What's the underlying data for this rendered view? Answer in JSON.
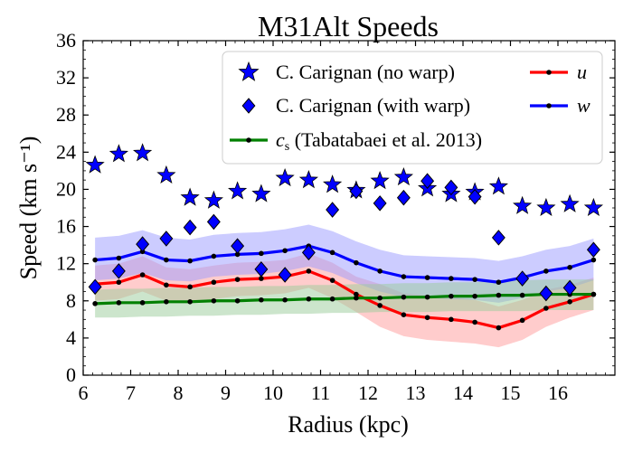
{
  "chart_data": {
    "type": "line",
    "title": "M31Alt Speeds",
    "xlabel": "Radius (kpc)",
    "ylabel": "Speed (km s⁻¹)",
    "xlim": [
      6.0,
      17.2
    ],
    "ylim": [
      0,
      36
    ],
    "xticks": [
      "6",
      "7",
      "8",
      "9",
      "10",
      "11",
      "12",
      "13",
      "14",
      "15",
      "16"
    ],
    "yticks": [
      "0",
      "4",
      "8",
      "12",
      "16",
      "20",
      "24",
      "28",
      "32",
      "36"
    ],
    "grid": false,
    "legend_placement": "top-right",
    "colors": {
      "u": "#ff0000",
      "w": "#0000ff",
      "cs": "#008000",
      "stars": "#0000ff",
      "diamonds": "#0000ff",
      "u_band": "#ff9999",
      "w_band": "#9999ff",
      "cs_band": "#99cc99"
    },
    "x": [
      6.25,
      6.75,
      7.25,
      7.75,
      8.25,
      8.75,
      9.25,
      9.75,
      10.25,
      10.75,
      11.25,
      11.75,
      12.25,
      12.75,
      13.25,
      13.75,
      14.25,
      14.75,
      15.25,
      15.75,
      16.25,
      16.75
    ],
    "series": [
      {
        "name": "u",
        "label": "u",
        "values": [
          9.8,
          10.0,
          10.8,
          9.7,
          9.5,
          10.0,
          10.3,
          10.4,
          10.6,
          11.2,
          10.2,
          8.7,
          7.5,
          6.5,
          6.2,
          6.0,
          5.7,
          5.1,
          5.9,
          7.2,
          7.9,
          8.7
        ],
        "band_lower": [
          8.0,
          8.2,
          9.0,
          8.0,
          7.8,
          8.2,
          8.5,
          8.6,
          8.8,
          9.4,
          8.3,
          6.8,
          5.2,
          4.2,
          3.8,
          3.6,
          3.4,
          3.0,
          3.8,
          5.2,
          6.2,
          7.0
        ],
        "band_upper": [
          11.8,
          12.0,
          12.8,
          11.6,
          11.4,
          11.8,
          12.1,
          12.2,
          12.4,
          13.1,
          12.1,
          10.6,
          9.8,
          8.8,
          8.6,
          8.4,
          8.1,
          7.4,
          8.1,
          9.2,
          9.7,
          10.5
        ]
      },
      {
        "name": "w",
        "label": "w",
        "values": [
          12.4,
          12.6,
          13.3,
          12.4,
          12.3,
          12.8,
          13.0,
          13.1,
          13.4,
          13.9,
          13.2,
          12.1,
          11.2,
          10.6,
          10.5,
          10.4,
          10.3,
          10.0,
          10.5,
          11.2,
          11.6,
          12.4
        ],
        "band_lower": [
          10.2,
          10.4,
          11.0,
          10.2,
          10.1,
          10.6,
          10.8,
          10.9,
          11.2,
          11.7,
          11.0,
          9.9,
          9.0,
          8.4,
          8.3,
          8.2,
          8.1,
          7.8,
          8.3,
          9.0,
          9.4,
          10.2
        ],
        "band_upper": [
          14.8,
          15.0,
          15.6,
          14.8,
          14.6,
          15.1,
          15.3,
          15.4,
          15.7,
          16.2,
          15.5,
          14.4,
          13.5,
          12.9,
          12.8,
          12.7,
          12.6,
          12.3,
          12.8,
          13.5,
          13.9,
          14.7
        ]
      },
      {
        "name": "cs",
        "label": "c_s (Tabatabaei et al. 2013)",
        "values": [
          7.7,
          7.8,
          7.8,
          7.9,
          7.9,
          8.0,
          8.0,
          8.1,
          8.1,
          8.2,
          8.2,
          8.3,
          8.3,
          8.4,
          8.4,
          8.5,
          8.5,
          8.6,
          8.6,
          8.7,
          8.7,
          8.7
        ],
        "band_lower": [
          6.2,
          6.2,
          6.3,
          6.3,
          6.4,
          6.4,
          6.5,
          6.5,
          6.6,
          6.6,
          6.7,
          6.7,
          6.8,
          6.8,
          6.8,
          6.9,
          6.9,
          6.9,
          6.9,
          7.0,
          7.0,
          7.0
        ],
        "band_upper": [
          9.2,
          9.3,
          9.3,
          9.4,
          9.4,
          9.5,
          9.5,
          9.6,
          9.6,
          9.7,
          9.7,
          9.8,
          9.8,
          9.9,
          9.9,
          10.0,
          10.0,
          10.2,
          10.2,
          10.3,
          10.3,
          10.3
        ]
      }
    ],
    "scatter": [
      {
        "name": "C. Carignan (no warp)",
        "marker": "star",
        "points": [
          [
            6.25,
            22.6
          ],
          [
            6.75,
            23.8
          ],
          [
            7.25,
            23.9
          ],
          [
            7.75,
            21.5
          ],
          [
            8.25,
            19.1
          ],
          [
            8.75,
            18.8
          ],
          [
            9.25,
            19.8
          ],
          [
            9.75,
            19.5
          ],
          [
            10.25,
            21.2
          ],
          [
            10.75,
            21.0
          ],
          [
            11.25,
            20.5
          ],
          [
            11.75,
            19.9
          ],
          [
            12.25,
            20.9
          ],
          [
            12.75,
            21.3
          ],
          [
            13.25,
            20.1
          ],
          [
            13.75,
            19.5
          ],
          [
            14.25,
            19.7
          ],
          [
            14.75,
            20.3
          ],
          [
            15.25,
            18.2
          ],
          [
            15.75,
            18.0
          ],
          [
            16.25,
            18.4
          ],
          [
            16.75,
            18.0
          ]
        ]
      },
      {
        "name": "C. Carignan (with warp)",
        "marker": "diamond",
        "points": [
          [
            6.25,
            9.5
          ],
          [
            6.75,
            11.2
          ],
          [
            7.25,
            14.1
          ],
          [
            7.75,
            14.7
          ],
          [
            8.25,
            15.9
          ],
          [
            8.75,
            16.5
          ],
          [
            9.25,
            13.9
          ],
          [
            9.75,
            11.4
          ],
          [
            10.25,
            10.8
          ],
          [
            10.75,
            13.2
          ],
          [
            11.25,
            17.8
          ],
          [
            11.75,
            19.8
          ],
          [
            12.25,
            18.5
          ],
          [
            12.75,
            19.1
          ],
          [
            13.25,
            20.9
          ],
          [
            13.75,
            20.2
          ],
          [
            14.25,
            19.2
          ],
          [
            14.75,
            14.8
          ],
          [
            15.25,
            10.4
          ],
          [
            15.75,
            8.8
          ],
          [
            16.25,
            9.4
          ],
          [
            16.75,
            13.5
          ]
        ]
      }
    ],
    "legend": {
      "stars": "C. Carignan (no warp)",
      "diamonds": "C. Carignan (with warp)",
      "cs_prefix": "c",
      "cs_sub": "s",
      "cs_suffix": " (Tabatabaei et al. 2013)",
      "u": "u",
      "w": "w"
    }
  }
}
